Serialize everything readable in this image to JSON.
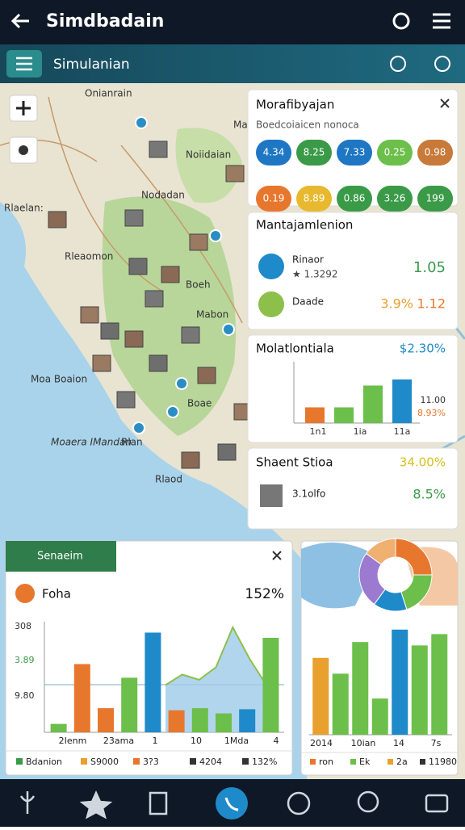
{
  "app_bar": {
    "title": "Simdbadain"
  },
  "toolbar": {
    "title": "Simulanian"
  },
  "map": {
    "labels": [
      "Onianrain",
      "Ma",
      "Noiidaian",
      "Nodadan",
      "Rlaelan:",
      "Rleaomon",
      "Boeh",
      "Mabon",
      "Moa Boaion",
      "Rlan",
      "Boae",
      "Moaera IMandan",
      "Rlaod"
    ]
  },
  "panel_1": {
    "title": "Morafibyajan",
    "subtitle": "Boedcoiaicen nonoca",
    "pills": [
      "4.34",
      "8.25",
      "7.33",
      "0.25",
      "0.98",
      "0.19",
      "8.89",
      "0.86",
      "3.26",
      "199"
    ],
    "pill_colors": [
      "#1f77c4",
      "#3a9a48",
      "#1f77c4",
      "#6cbf4a",
      "#c77a3a",
      "#e8772e",
      "#e8b92e",
      "#3a9a48",
      "#3a9a48",
      "#3a9a48"
    ]
  },
  "panel_2": {
    "title": "Mantajamlenion",
    "rows": [
      {
        "name": "Rinaor",
        "detail": "★ 1.3292",
        "value": "1.05"
      },
      {
        "name": "Daade",
        "value": "3.9%",
        "value2": "1.12"
      }
    ]
  },
  "panel_3": {
    "title": "Molatlontiala",
    "value": "$2.30%",
    "ylim": [
      0,
      100
    ],
    "bars": [
      26,
      26,
      62,
      72
    ],
    "bar_colors": [
      "#e8772e",
      "#6cbf4a",
      "#6cbf4a",
      "#1f8ac9"
    ],
    "labels": [
      "1n1",
      "1ia",
      "11a"
    ],
    "side": [
      "11.00",
      "8.93%"
    ]
  },
  "panel_4": {
    "title": "Shaent Stioa",
    "value": "34.00%",
    "item": "3.1olfo",
    "item_value": "8.5%"
  },
  "chart_left": {
    "title": "Senaeim",
    "row_label": "Foha",
    "row_value": "152%",
    "y_labels": [
      "308",
      "3.89",
      "9.80"
    ],
    "x_labels": [
      "2Ienm",
      "23ama",
      "1",
      "10",
      "1Mda",
      "4"
    ],
    "ylim": [
      0,
      100
    ],
    "bars": [
      8,
      65,
      23,
      52,
      95,
      21,
      23,
      18,
      22,
      90
    ],
    "bar_colors": [
      "#6cbf4a",
      "#e8772e",
      "#e8772e",
      "#6cbf4a",
      "#1f8ac9",
      "#e8772e",
      "#6cbf4a",
      "#6cbf4a",
      "#1f8ac9",
      "#6cbf4a"
    ],
    "area": [
      45,
      55,
      50,
      62,
      100,
      70,
      45
    ],
    "legend": [
      "Bdanion",
      "S9000",
      "3?3",
      "4204",
      "132%"
    ]
  },
  "chart_right": {
    "pie": [
      25,
      20,
      15,
      25,
      15
    ],
    "pie_colors": [
      "#e8772e",
      "#6cbf4a",
      "#1f8ac9",
      "#9b7ad0",
      "#f0b070"
    ],
    "ylim": [
      0,
      100
    ],
    "bars": [
      68,
      54,
      82,
      32,
      93,
      79,
      89
    ],
    "bar_colors": [
      "#e8a02e",
      "#6cbf4a",
      "#6cbf4a",
      "#6cbf4a",
      "#1f8ac9",
      "#6cbf4a",
      "#6cbf4a"
    ],
    "x_labels": [
      "2014",
      "10ian",
      "14",
      "7s"
    ],
    "legend": [
      "ron",
      "Ek",
      "2a",
      "11980"
    ]
  }
}
